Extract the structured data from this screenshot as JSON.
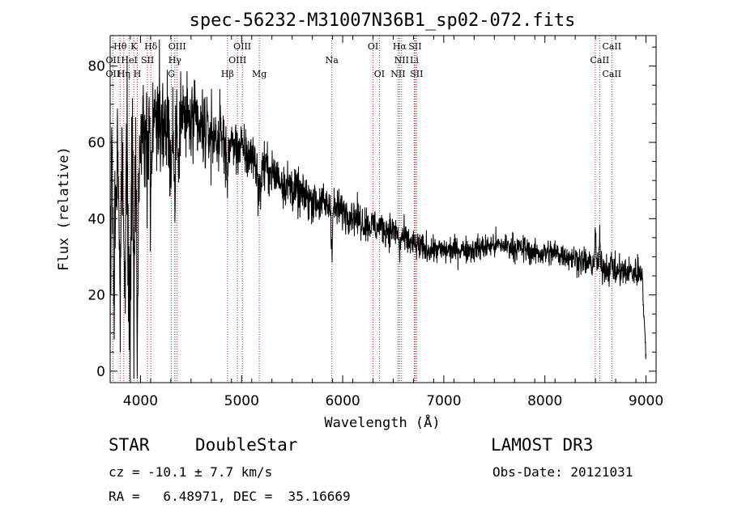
{
  "chart_data": {
    "type": "line",
    "title": "spec-56232-M31007N36B1_sp02-072.fits",
    "xlabel": "Wavelength (Å)",
    "ylabel": "Flux (relative)",
    "xlim": [
      3700,
      9100
    ],
    "ylim": [
      -3,
      88
    ],
    "xticks": [
      4000,
      5000,
      6000,
      7000,
      8000,
      9000
    ],
    "yticks": [
      0,
      20,
      40,
      60,
      80
    ],
    "grid": false,
    "line_color": "#000000",
    "marker_color": "#b22222",
    "continuum": [
      [
        3700,
        0
      ],
      [
        3712,
        62
      ],
      [
        3735,
        58
      ],
      [
        3760,
        57
      ],
      [
        3790,
        55
      ],
      [
        3830,
        54
      ],
      [
        3880,
        56
      ],
      [
        3930,
        55
      ],
      [
        3980,
        57
      ],
      [
        4030,
        60
      ],
      [
        4080,
        63
      ],
      [
        4150,
        67
      ],
      [
        4220,
        66
      ],
      [
        4300,
        66
      ],
      [
        4400,
        67
      ],
      [
        4500,
        65
      ],
      [
        4600,
        63
      ],
      [
        4700,
        62
      ],
      [
        4800,
        61
      ],
      [
        4900,
        60
      ],
      [
        5000,
        58
      ],
      [
        5100,
        56
      ],
      [
        5200,
        54
      ],
      [
        5300,
        52
      ],
      [
        5400,
        50
      ],
      [
        5500,
        48
      ],
      [
        5600,
        46
      ],
      [
        5700,
        45
      ],
      [
        5800,
        44
      ],
      [
        5900,
        43
      ],
      [
        6000,
        42
      ],
      [
        6100,
        41
      ],
      [
        6200,
        39
      ],
      [
        6300,
        38
      ],
      [
        6400,
        37.5
      ],
      [
        6500,
        37
      ],
      [
        6600,
        35
      ],
      [
        6700,
        33
      ],
      [
        6800,
        32
      ],
      [
        6900,
        32
      ],
      [
        7000,
        31.5
      ],
      [
        7100,
        32
      ],
      [
        7200,
        32
      ],
      [
        7300,
        32
      ],
      [
        7400,
        32.5
      ],
      [
        7500,
        33
      ],
      [
        7600,
        33
      ],
      [
        7700,
        32.5
      ],
      [
        7800,
        32
      ],
      [
        7900,
        31
      ],
      [
        8000,
        31
      ],
      [
        8100,
        31
      ],
      [
        8200,
        30.5
      ],
      [
        8300,
        29.5
      ],
      [
        8400,
        28.5
      ],
      [
        8500,
        28
      ],
      [
        8600,
        27
      ],
      [
        8700,
        26
      ],
      [
        8800,
        26
      ],
      [
        8900,
        26
      ],
      [
        8960,
        27
      ],
      [
        9000,
        2
      ]
    ],
    "features": [
      [
        3740,
        -40,
        8
      ],
      [
        3800,
        -30,
        10
      ],
      [
        3845,
        -35,
        8
      ],
      [
        3890,
        -40,
        10
      ],
      [
        3934,
        -45,
        6
      ],
      [
        3969,
        -45,
        6
      ],
      [
        4102,
        -20,
        8
      ],
      [
        4300,
        -15,
        10
      ],
      [
        4340,
        -22,
        8
      ],
      [
        4383,
        -10,
        6
      ],
      [
        4861,
        -12,
        8
      ],
      [
        5175,
        -8,
        15
      ],
      [
        5893,
        -10,
        6
      ],
      [
        6563,
        -5,
        6
      ],
      [
        8498,
        8,
        6
      ],
      [
        8542,
        6,
        6
      ],
      [
        8662,
        3,
        6
      ]
    ],
    "noise": [
      [
        3700,
        18
      ],
      [
        4000,
        14
      ],
      [
        4500,
        8
      ],
      [
        5000,
        5
      ],
      [
        6000,
        3.5
      ],
      [
        6600,
        3
      ],
      [
        7000,
        2.5
      ],
      [
        8000,
        2.5
      ],
      [
        9000,
        3
      ]
    ],
    "lines": [
      {
        "label": "Hθ",
        "x": 3798,
        "row": 0
      },
      {
        "label": "OII",
        "x": 3727,
        "row": 1
      },
      {
        "label": "OII",
        "x": 3727,
        "row": 2
      },
      {
        "label": "Hη",
        "x": 3835,
        "row": 2
      },
      {
        "label": "HeI",
        "x": 3889,
        "row": 1
      },
      {
        "label": "K",
        "x": 3934,
        "row": 0
      },
      {
        "label": "SII",
        "x": 4069,
        "row": 1
      },
      {
        "label": "H",
        "x": 3969,
        "row": 2
      },
      {
        "label": "Hδ",
        "x": 4102,
        "row": 0
      },
      {
        "label": "OIII",
        "x": 4363,
        "row": 0
      },
      {
        "label": "Hγ",
        "x": 4340,
        "row": 1
      },
      {
        "label": "G",
        "x": 4305,
        "row": 2
      },
      {
        "label": "OIII",
        "x": 5007,
        "row": 0
      },
      {
        "label": "OIII",
        "x": 4959,
        "row": 1
      },
      {
        "label": "Hβ",
        "x": 4861,
        "row": 2
      },
      {
        "label": "Mg",
        "x": 5175,
        "row": 2
      },
      {
        "label": "Na",
        "x": 5893,
        "row": 1
      },
      {
        "label": "OI",
        "x": 6300,
        "row": 0
      },
      {
        "label": "OI",
        "x": 6363,
        "row": 2
      },
      {
        "label": "Hα",
        "x": 6563,
        "row": 0
      },
      {
        "label": "SII",
        "x": 6716,
        "row": 0
      },
      {
        "label": "NII",
        "x": 6583,
        "row": 1
      },
      {
        "label": "Li",
        "x": 6708,
        "row": 1
      },
      {
        "label": "NII",
        "x": 6548,
        "row": 2
      },
      {
        "label": "SII",
        "x": 6731,
        "row": 2
      },
      {
        "label": "CaII",
        "x": 8662,
        "row": 0
      },
      {
        "label": "CaII",
        "x": 8542,
        "row": 1
      },
      {
        "label": "CaII",
        "x": 8662,
        "row": 2
      }
    ],
    "marker_lines": [
      3727,
      3798,
      3835,
      3889,
      3934,
      3969,
      4069,
      4102,
      4305,
      4340,
      4363,
      4861,
      4959,
      5007,
      5175,
      5893,
      6300,
      6363,
      6548,
      6563,
      6583,
      6708,
      6716,
      6731,
      8498,
      8542,
      8662
    ]
  },
  "info": {
    "object_class": "STAR",
    "subclass": "DoubleStar",
    "survey": "LAMOST DR3",
    "cz": "cz = -10.1 ± 7.7 km/s",
    "obs_date": "Obs-Date: 20121031",
    "coords": "RA =   6.48971, DEC =  35.16669"
  }
}
